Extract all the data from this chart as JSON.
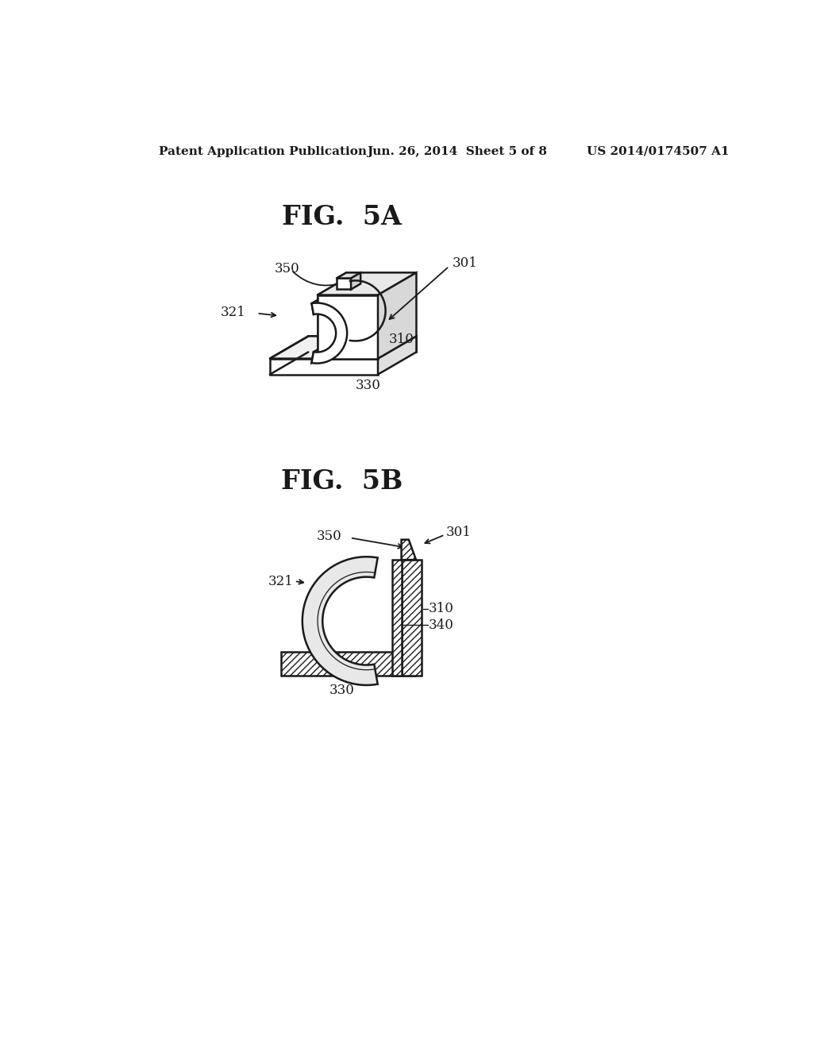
{
  "background_color": "#ffffff",
  "header_left": "Patent Application Publication",
  "header_center": "Jun. 26, 2014  Sheet 5 of 8",
  "header_right": "US 2014/0174507 A1",
  "fig5a_title": "FIG.  5A",
  "fig5b_title": "FIG.  5B",
  "labels": {
    "301_a": "301",
    "350_a": "350",
    "321_a": "321",
    "310_a": "310",
    "330_a": "330",
    "301_b": "301",
    "350_b": "350",
    "321_b": "321",
    "310_b": "310",
    "340_b": "340",
    "330_b": "330"
  },
  "line_color": "#1a1a1a",
  "text_color": "#1a1a1a"
}
